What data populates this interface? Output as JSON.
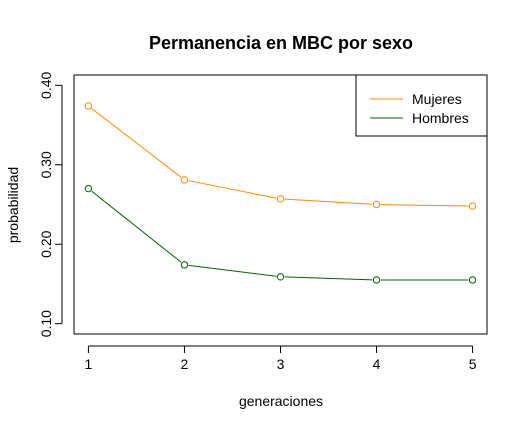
{
  "chart_data": {
    "type": "line",
    "title": "Permanencia en MBC por sexo",
    "xlabel": "generaciones",
    "ylabel": "probabilidad",
    "x": [
      1,
      2,
      3,
      4,
      5
    ],
    "x_ticks": [
      "1",
      "2",
      "3",
      "4",
      "5"
    ],
    "y_ticks": [
      "0.10",
      "0.20",
      "0.30",
      "0.40"
    ],
    "y_tick_values": [
      0.1,
      0.2,
      0.3,
      0.4
    ],
    "xlim": [
      0.85,
      5.15
    ],
    "ylim": [
      0.087,
      0.413
    ],
    "grid": false,
    "legend_position": "top-right",
    "series": [
      {
        "name": "Mujeres",
        "color": "#ff8c00",
        "values": [
          0.374,
          0.281,
          0.257,
          0.25,
          0.248
        ]
      },
      {
        "name": "Hombres",
        "color": "#006400",
        "values": [
          0.27,
          0.174,
          0.159,
          0.155,
          0.155
        ]
      }
    ]
  }
}
